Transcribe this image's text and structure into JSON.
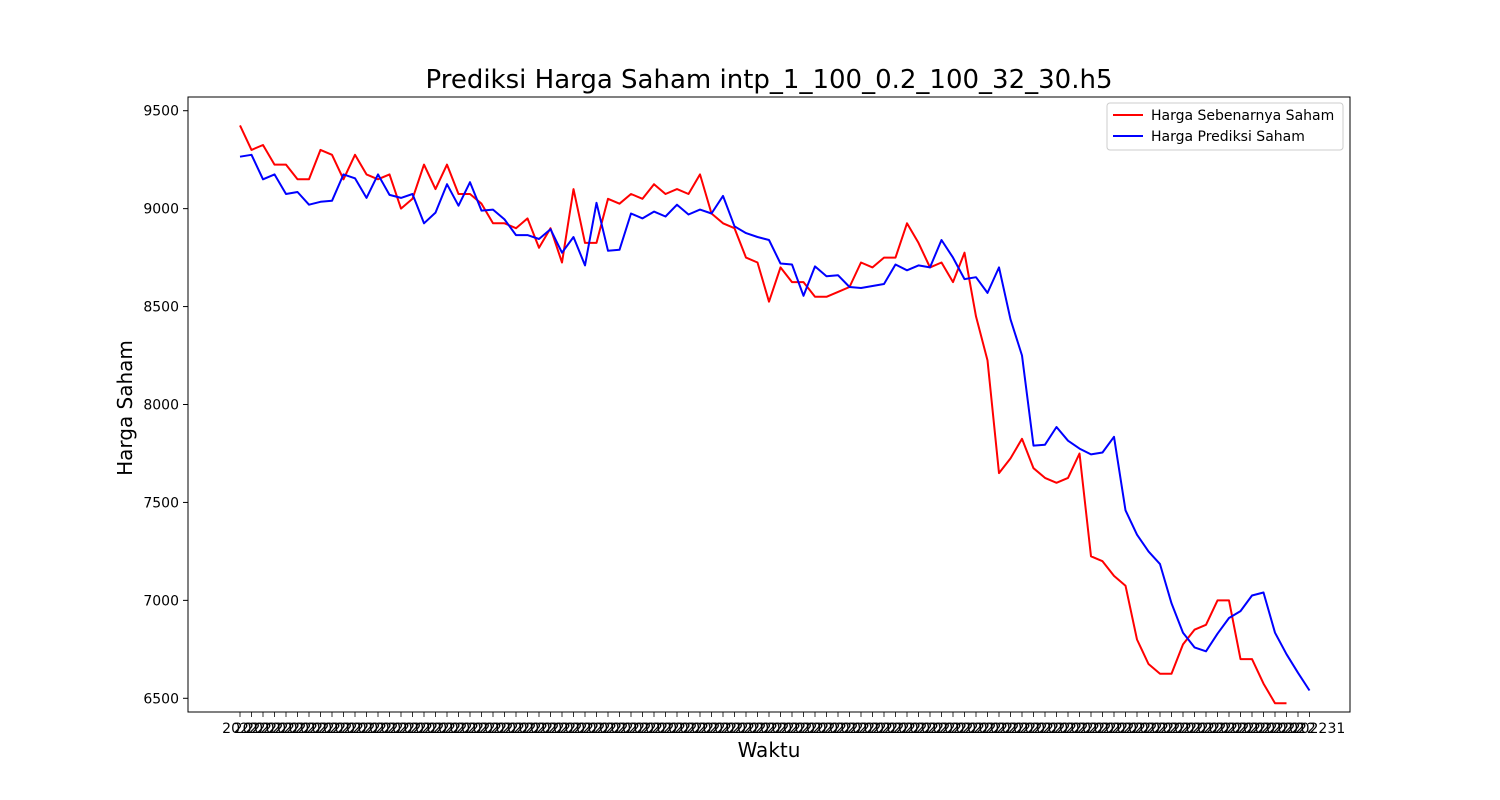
{
  "chart_data": {
    "type": "line",
    "title": "Prediksi Harga Saham intp_1_100_0.2_100_32_30.h5",
    "xlabel": "Waktu",
    "ylabel": "Harga Saham",
    "ylim": [
      6430,
      9570
    ],
    "yticks": [
      6500,
      7000,
      7500,
      8000,
      8500,
      9000,
      9500
    ],
    "x_tick_labels_note": "dates overlap into unreadable text; last legible fragment",
    "x_last_tick_fragment": "31",
    "grid": false,
    "legend_position": "top-right",
    "series": [
      {
        "name": "Harga Sebenarnya Saham",
        "color": "#ff0000",
        "values": [
          9425,
          9300,
          9325,
          9225,
          9225,
          9150,
          9150,
          9300,
          9275,
          9150,
          9275,
          9175,
          9150,
          9175,
          9000,
          9050,
          9225,
          9100,
          9225,
          9075,
          9075,
          9025,
          8925,
          8925,
          8900,
          8950,
          8800,
          8900,
          8725,
          9100,
          8825,
          8825,
          9050,
          9025,
          9075,
          9050,
          9125,
          9075,
          9100,
          9075,
          9175,
          8975,
          8925,
          8900,
          8750,
          8725,
          8525,
          8700,
          8625,
          8625,
          8550,
          8550,
          8575,
          8600,
          8725,
          8700,
          8750,
          8750,
          8925,
          8825,
          8700,
          8725,
          8625,
          8775,
          8450,
          8225,
          7650,
          7725,
          7825,
          7675,
          7625,
          7600,
          7625,
          7750,
          7225,
          7200,
          7125,
          7075,
          6800,
          6675,
          6625,
          6625,
          6775,
          6850,
          6875,
          7000,
          7000,
          6700,
          6700,
          6575,
          6475,
          6475
        ]
      },
      {
        "name": "Harga Prediksi Saham",
        "color": "#0000ff",
        "values": [
          9265,
          9275,
          9150,
          9175,
          9075,
          9085,
          9020,
          9035,
          9040,
          9175,
          9155,
          9055,
          9175,
          9070,
          9055,
          9075,
          8925,
          8980,
          9125,
          9015,
          9135,
          8990,
          8995,
          8945,
          8865,
          8865,
          8845,
          8895,
          8775,
          8855,
          8710,
          9030,
          8785,
          8790,
          8975,
          8950,
          8985,
          8960,
          9020,
          8970,
          8995,
          8975,
          9065,
          8910,
          8875,
          8855,
          8840,
          8720,
          8715,
          8555,
          8705,
          8655,
          8660,
          8600,
          8595,
          8605,
          8615,
          8715,
          8685,
          8710,
          8700,
          8840,
          8750,
          8640,
          8650,
          8570,
          8700,
          8435,
          8250,
          7790,
          7795,
          7885,
          7815,
          7775,
          7745,
          7755,
          7835,
          7460,
          7335,
          7250,
          7185,
          6985,
          6835,
          6760,
          6740,
          6830,
          6910,
          6945,
          7025,
          7040,
          6835,
          6725,
          6630,
          6540
        ]
      }
    ]
  }
}
